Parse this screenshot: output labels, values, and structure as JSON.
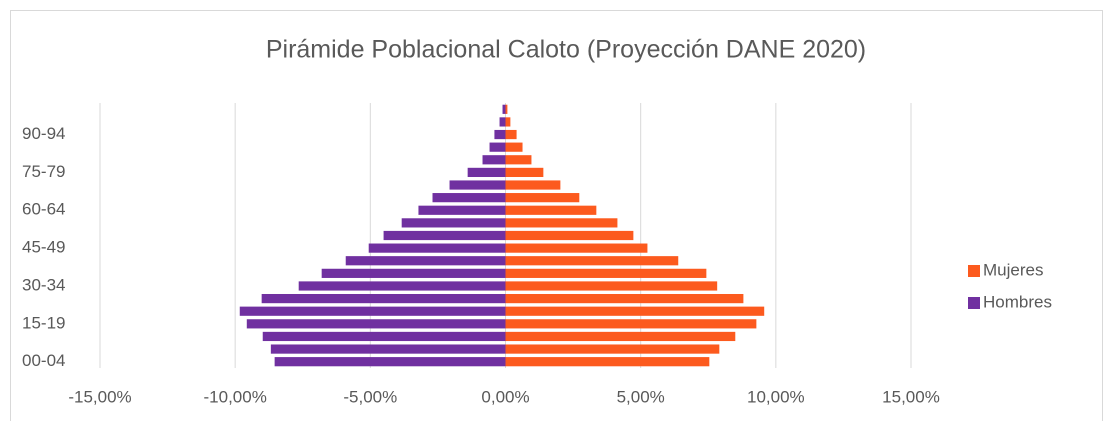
{
  "chart_data": {
    "type": "pyramid",
    "title": "Pirámide Poblacional Caloto (Proyección DANE 2020)",
    "categories": [
      "00-04",
      null,
      null,
      "15-19",
      null,
      null,
      "30-34",
      null,
      null,
      "45-49",
      null,
      null,
      "60-64",
      null,
      null,
      "75-79",
      null,
      null,
      "90-94",
      null,
      null
    ],
    "series": [
      {
        "name": "Mujeres",
        "color": "#fc5a1e",
        "values": [
          7.54,
          7.91,
          8.5,
          9.28,
          9.57,
          8.8,
          7.83,
          7.43,
          6.39,
          5.25,
          4.73,
          4.14,
          3.36,
          2.73,
          2.03,
          1.4,
          0.96,
          0.63,
          0.41,
          0.18,
          0.07
        ]
      },
      {
        "name": "Hombres",
        "color": "#7030a0",
        "values": [
          -8.54,
          -8.68,
          -8.98,
          -9.57,
          -9.83,
          -9.02,
          -7.65,
          -6.8,
          -5.91,
          -5.06,
          -4.51,
          -3.84,
          -3.22,
          -2.7,
          -2.07,
          -1.4,
          -0.85,
          -0.59,
          -0.41,
          -0.22,
          -0.11
        ]
      }
    ],
    "xlim": [
      -15,
      15
    ],
    "xticks": [
      {
        "value": -15,
        "label": "-15,00%"
      },
      {
        "value": -10,
        "label": "-10,00%"
      },
      {
        "value": -5,
        "label": "-5,00%"
      },
      {
        "value": 0,
        "label": "0,00%"
      },
      {
        "value": 5,
        "label": "5,00%"
      },
      {
        "value": 10,
        "label": "10,00%"
      },
      {
        "value": 15,
        "label": "15,00%"
      }
    ],
    "grid": true,
    "legend": "right"
  }
}
